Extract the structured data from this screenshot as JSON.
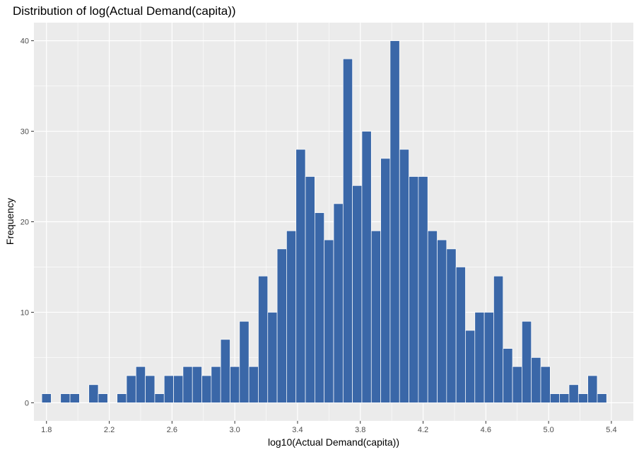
{
  "chart_data": {
    "type": "histogram",
    "title": "Distribution of log(Actual Demand(capita))",
    "xlabel": "log10(Actual Demand(capita))",
    "ylabel": "Frequency",
    "xlim": [
      1.72,
      5.54
    ],
    "ylim": [
      -2,
      42
    ],
    "bin_width": 0.06,
    "first_bin_center": 1.8,
    "x_ticks": [
      "1.8",
      "2.2",
      "2.6",
      "3.0",
      "3.4",
      "3.8",
      "4.2",
      "4.6",
      "5.0",
      "5.4"
    ],
    "y_ticks": [
      "0",
      "10",
      "20",
      "30",
      "40"
    ],
    "counts": [
      1,
      0,
      1,
      1,
      0,
      2,
      1,
      0,
      1,
      3,
      4,
      3,
      1,
      3,
      3,
      4,
      4,
      3,
      4,
      7,
      4,
      9,
      4,
      14,
      10,
      17,
      19,
      28,
      25,
      21,
      18,
      22,
      38,
      24,
      30,
      19,
      27,
      40,
      28,
      25,
      25,
      19,
      18,
      17,
      15,
      8,
      10,
      10,
      14,
      6,
      4,
      9,
      5,
      4,
      1,
      1,
      2,
      1,
      3,
      1
    ],
    "grid": true,
    "bar_color": "#3a67a8",
    "panel_color": "#ebebeb"
  }
}
